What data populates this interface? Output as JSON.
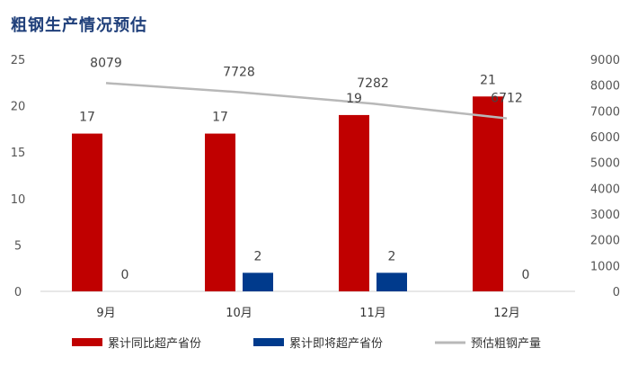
{
  "title": "粗钢生产情况预估",
  "chart_data": {
    "type": "bar",
    "categories": [
      "9月",
      "10月",
      "11月",
      "12月"
    ],
    "series": [
      {
        "name": "累计同比超产省份",
        "kind": "bar",
        "axis": "left",
        "color": "#c00000",
        "values": [
          17,
          17,
          19,
          21
        ]
      },
      {
        "name": "累计即将超产省份",
        "kind": "bar",
        "axis": "left",
        "color": "#003a8c",
        "values": [
          0,
          2,
          2,
          0
        ]
      },
      {
        "name": "预估粗钢产量",
        "kind": "line",
        "axis": "right",
        "color": "#b8b8b8",
        "values": [
          8079,
          7728,
          7282,
          6712
        ]
      }
    ],
    "ylim_left": [
      0,
      25
    ],
    "yticks_left": [
      0,
      5,
      10,
      15,
      20,
      25
    ],
    "ylim_right": [
      0,
      9000
    ],
    "yticks_right": [
      0,
      1000,
      2000,
      3000,
      4000,
      5000,
      6000,
      7000,
      8000,
      9000
    ],
    "grid": false,
    "legend": "bottom"
  }
}
